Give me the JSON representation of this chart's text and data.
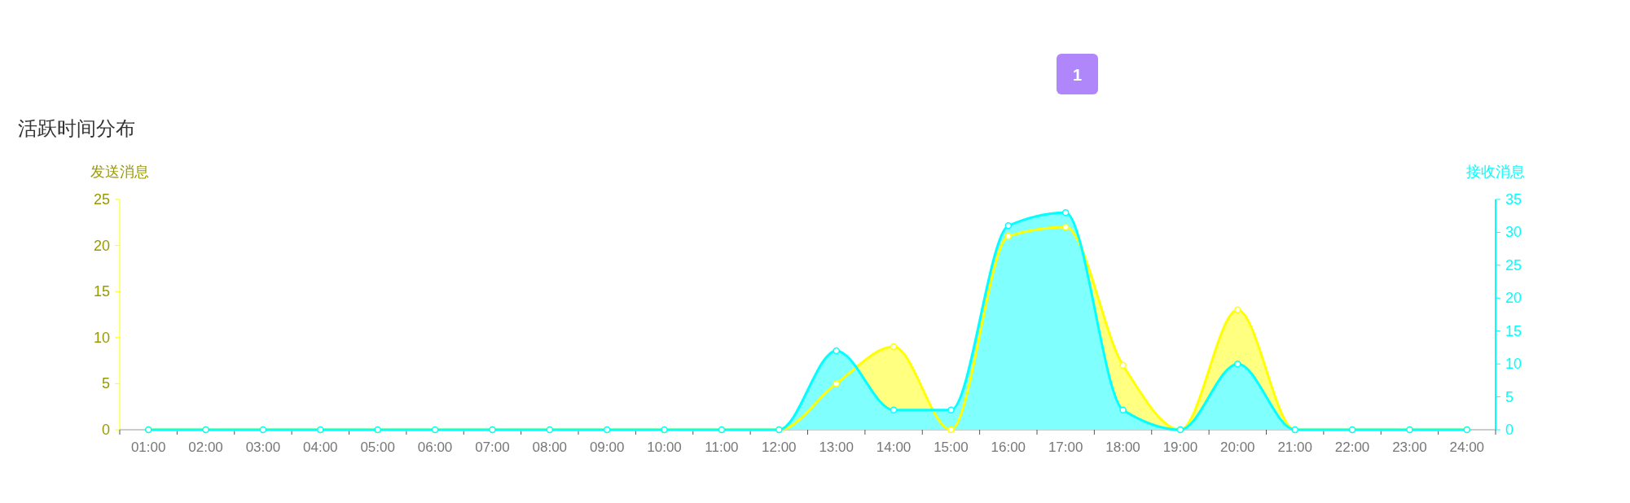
{
  "chart_data": {
    "type": "area",
    "title": "活跃时间分布",
    "ylabel": "发送消息",
    "y2label": "接收消息",
    "annotations": [
      "1"
    ],
    "categories": [
      "01:00",
      "02:00",
      "03:00",
      "04:00",
      "05:00",
      "06:00",
      "07:00",
      "08:00",
      "09:00",
      "10:00",
      "11:00",
      "12:00",
      "13:00",
      "14:00",
      "15:00",
      "16:00",
      "17:00",
      "18:00",
      "19:00",
      "20:00",
      "21:00",
      "22:00",
      "23:00",
      "24:00"
    ],
    "series": [
      {
        "color": "#ffff00",
        "values": [
          0,
          0,
          0,
          0,
          0,
          0,
          0,
          0,
          0,
          0,
          0,
          0,
          5,
          9,
          0,
          21,
          22,
          7,
          0,
          13,
          0,
          0,
          0,
          0
        ]
      },
      {
        "color": "#00ffff",
        "axis": "y2",
        "values": [
          0,
          0,
          0,
          0,
          0,
          0,
          0,
          0,
          0,
          0,
          0,
          0,
          12,
          3,
          3,
          31,
          33,
          3,
          0,
          10,
          0,
          0,
          0,
          0
        ]
      }
    ],
    "ylim": [
      0,
      25
    ],
    "yticks": [
      0,
      5,
      10,
      15,
      20,
      25
    ],
    "y2lim": [
      0,
      35
    ],
    "y2ticks": [
      0,
      5,
      10,
      15,
      20,
      25,
      30,
      35
    ],
    "marker": "circle",
    "line_style": "solid",
    "grid": false
  }
}
